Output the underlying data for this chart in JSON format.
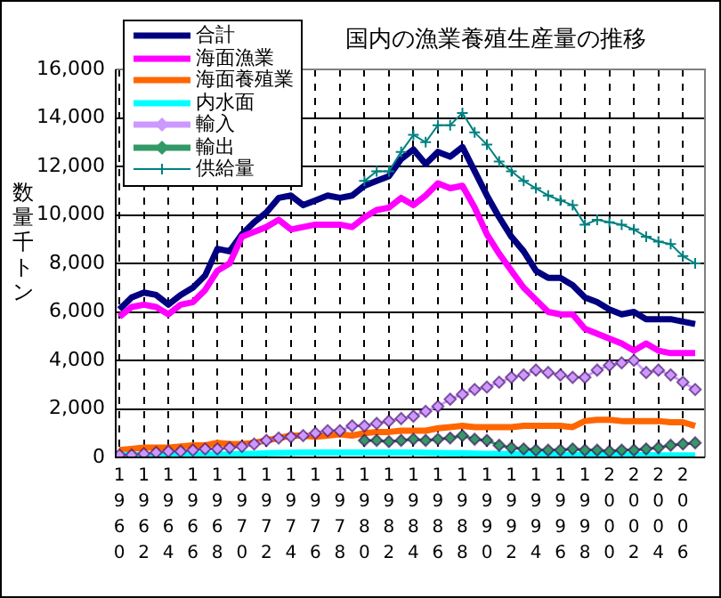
{
  "chart_data": {
    "type": "line",
    "title": "国内の漁業養殖生産量の推移",
    "ylabel": "数量千トン",
    "x": [
      1960,
      1961,
      1962,
      1963,
      1964,
      1965,
      1966,
      1967,
      1968,
      1969,
      1970,
      1971,
      1972,
      1973,
      1974,
      1975,
      1976,
      1977,
      1978,
      1979,
      1980,
      1981,
      1982,
      1983,
      1984,
      1985,
      1986,
      1987,
      1988,
      1989,
      1990,
      1991,
      1992,
      1993,
      1994,
      1995,
      1996,
      1997,
      1998,
      1999,
      2000,
      2001,
      2002,
      2003,
      2004,
      2005,
      2006,
      2007
    ],
    "xlim": [
      1959.7,
      2007.8
    ],
    "xticks": [
      1960,
      1962,
      1964,
      1966,
      1968,
      1970,
      1972,
      1974,
      1976,
      1978,
      1980,
      1982,
      1984,
      1986,
      1988,
      1990,
      1992,
      1994,
      1996,
      1998,
      2000,
      2002,
      2004,
      2006
    ],
    "ylim": [
      0,
      16000
    ],
    "yticks": [
      0,
      {
        "value": 2000,
        "label": "2,000"
      },
      {
        "value": 4000,
        "label": "4,000"
      },
      {
        "value": 6000,
        "label": "6,000"
      },
      {
        "value": 8000,
        "label": "8,000"
      },
      {
        "value": 10000,
        "label": "10,000"
      },
      {
        "value": 12000,
        "label": "12,000"
      },
      {
        "value": 14000,
        "label": "14,000"
      },
      {
        "value": 16000,
        "label": "16,000"
      }
    ],
    "grid": true,
    "legend": "top left",
    "line_style": "solid",
    "series": [
      {
        "name": "合計",
        "color": "#000080",
        "marker": "none",
        "values": [
          6100,
          6600,
          6800,
          6700,
          6300,
          6700,
          7000,
          7500,
          8600,
          8500,
          9200,
          9700,
          10100,
          10700,
          10800,
          10400,
          10600,
          10800,
          10700,
          10800,
          11200,
          11400,
          11600,
          12300,
          12700,
          12100,
          12600,
          12400,
          12800,
          11800,
          10800,
          9900,
          9100,
          8500,
          7700,
          7400,
          7400,
          7100,
          6600,
          6400,
          6100,
          5900,
          6000,
          5700,
          5700,
          5700,
          5600,
          5500
        ]
      },
      {
        "name": "海面漁業",
        "color": "#ff00ff",
        "marker": "none",
        "values": [
          5800,
          6200,
          6300,
          6200,
          5900,
          6300,
          6400,
          6900,
          7700,
          8000,
          9100,
          9300,
          9500,
          9800,
          9400,
          9500,
          9600,
          9600,
          9600,
          9500,
          9900,
          10200,
          10300,
          10700,
          10400,
          10800,
          11300,
          11100,
          11200,
          10300,
          9200,
          8400,
          7700,
          7000,
          6500,
          6000,
          5900,
          5900,
          5300,
          5100,
          4900,
          4700,
          4400,
          4700,
          4400,
          4300,
          4300,
          4300
        ]
      },
      {
        "name": "海面養殖業",
        "color": "#ff6600",
        "marker": "none",
        "values": [
          300,
          350,
          400,
          400,
          400,
          450,
          500,
          500,
          600,
          550,
          550,
          600,
          700,
          800,
          900,
          900,
          850,
          900,
          950,
          900,
          1000,
          1050,
          1050,
          1100,
          1100,
          1100,
          1200,
          1250,
          1300,
          1250,
          1250,
          1250,
          1250,
          1300,
          1300,
          1300,
          1300,
          1250,
          1500,
          1550,
          1550,
          1500,
          1500,
          1500,
          1500,
          1450,
          1450,
          1300
        ]
      },
      {
        "name": "内水面",
        "color": "#00ffff",
        "marker": "none",
        "values": [
          100,
          100,
          100,
          100,
          100,
          100,
          100,
          120,
          120,
          120,
          150,
          150,
          170,
          180,
          190,
          200,
          200,
          200,
          200,
          200,
          200,
          200,
          200,
          200,
          200,
          190,
          180,
          170,
          170,
          160,
          150,
          150,
          140,
          130,
          120,
          110,
          100,
          100,
          100,
          100,
          100,
          90,
          90,
          90,
          80,
          80,
          80,
          80
        ]
      },
      {
        "name": "輸入",
        "color": "#cc99ff",
        "marker": "diamond",
        "values": [
          100,
          100,
          150,
          200,
          250,
          250,
          300,
          350,
          350,
          400,
          450,
          550,
          700,
          800,
          850,
          900,
          1000,
          1100,
          1100,
          1300,
          1300,
          1400,
          1500,
          1600,
          1700,
          1900,
          2100,
          2400,
          2600,
          2800,
          2900,
          3100,
          3300,
          3400,
          3600,
          3500,
          3400,
          3300,
          3300,
          3600,
          3800,
          3900,
          4000,
          3500,
          3600,
          3400,
          3100,
          2800
        ]
      },
      {
        "name": "輸出",
        "color": "#339966",
        "marker": "diamond",
        "values": [
          null,
          null,
          null,
          null,
          null,
          null,
          null,
          null,
          null,
          null,
          null,
          null,
          null,
          null,
          null,
          null,
          null,
          null,
          null,
          null,
          700,
          700,
          650,
          700,
          750,
          700,
          750,
          800,
          900,
          750,
          700,
          500,
          400,
          350,
          300,
          300,
          300,
          350,
          300,
          300,
          250,
          300,
          300,
          350,
          400,
          500,
          550,
          600
        ]
      },
      {
        "name": "供給量",
        "color": "#008080",
        "marker": "cross",
        "values": [
          null,
          null,
          null,
          null,
          null,
          null,
          null,
          null,
          null,
          null,
          null,
          null,
          null,
          null,
          null,
          null,
          null,
          null,
          null,
          null,
          11400,
          11800,
          11800,
          12600,
          13300,
          13000,
          13700,
          13700,
          14200,
          13400,
          12900,
          12200,
          11800,
          11400,
          11100,
          10800,
          10600,
          10400,
          9600,
          9800,
          9700,
          9600,
          9400,
          9100,
          8900,
          8800,
          8300,
          8000
        ]
      }
    ]
  }
}
